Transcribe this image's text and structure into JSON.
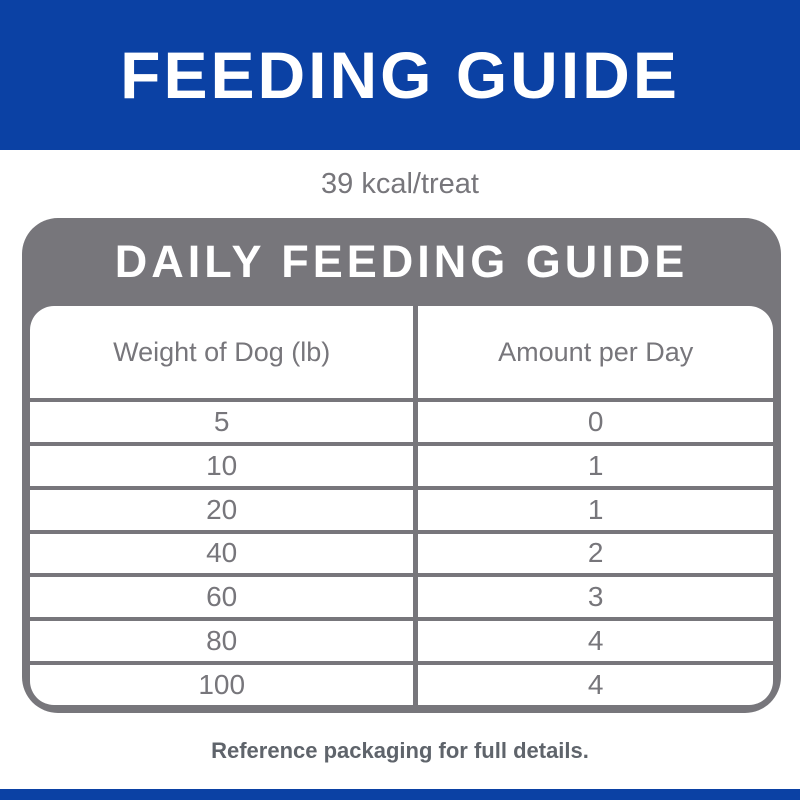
{
  "banner": {
    "title": "FEEDING GUIDE"
  },
  "kcal_line": "39 kcal/treat",
  "table": {
    "title": "DAILY FEEDING GUIDE",
    "columns": [
      "Weight of Dog (lb)",
      "Amount per Day"
    ],
    "rows": [
      [
        "5",
        "0"
      ],
      [
        "10",
        "1"
      ],
      [
        "20",
        "1"
      ],
      [
        "40",
        "2"
      ],
      [
        "60",
        "3"
      ],
      [
        "80",
        "4"
      ],
      [
        "100",
        "4"
      ]
    ]
  },
  "footnote": "Reference packaging for full details.",
  "colors": {
    "brand_blue": "#0b41a4",
    "panel_gray": "#77767b",
    "table_text_gray": "#77767b",
    "footnote_gray": "#5f646b"
  }
}
